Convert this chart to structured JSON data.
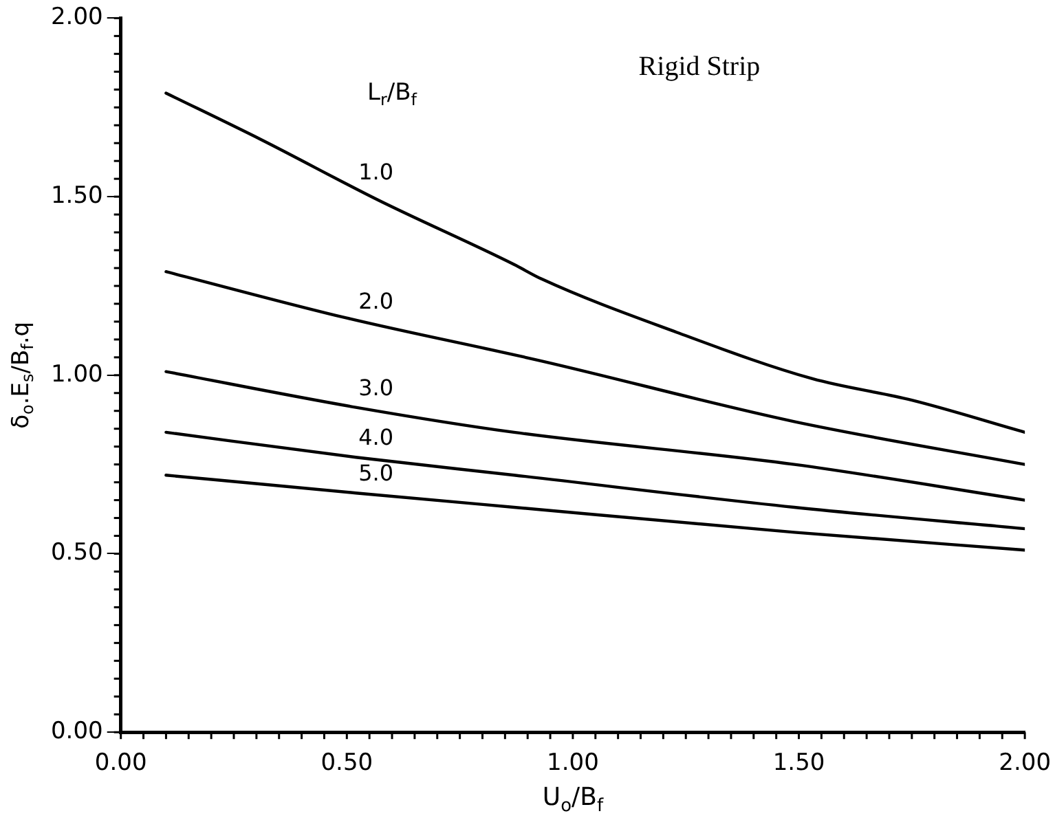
{
  "chart_data": {
    "type": "line",
    "annotations": [
      "Rigid Strip"
    ],
    "legend_title": "L$_{r}$/B$_{f}$",
    "xlabel": "U$_{o}$/B$_{f}$",
    "ylabel": "δ$_{o}$.E$_{s}$/B$_{f}$.q",
    "series": [
      {
        "name": "1.0",
        "color": "#000000",
        "x": [
          0.1,
          0.31,
          0.57,
          0.87,
          0.93,
          1.23,
          1.53,
          1.75,
          2.0
        ],
        "values": [
          1.79,
          1.66,
          1.49,
          1.31,
          1.27,
          1.12,
          0.99,
          0.93,
          0.84
        ]
      },
      {
        "name": "2.0",
        "color": "#000000",
        "x": [
          0.1,
          0.5,
          0.93,
          1.49,
          2.0
        ],
        "values": [
          1.29,
          1.16,
          1.04,
          0.87,
          0.75
        ]
      },
      {
        "name": "3.0",
        "color": "#000000",
        "x": [
          0.1,
          0.52,
          0.87,
          1.49,
          2.0
        ],
        "values": [
          1.01,
          0.91,
          0.84,
          0.75,
          0.65
        ]
      },
      {
        "name": "4.0",
        "color": "#000000",
        "x": [
          0.1,
          0.52,
          0.87,
          1.49,
          2.0
        ],
        "values": [
          0.84,
          0.77,
          0.72,
          0.63,
          0.57
        ]
      },
      {
        "name": "5.0",
        "color": "#000000",
        "x": [
          0.1,
          0.52,
          0.87,
          1.49,
          2.0
        ],
        "values": [
          0.72,
          0.67,
          0.63,
          0.56,
          0.51
        ]
      }
    ],
    "xlim": [
      0,
      2
    ],
    "ylim": [
      0,
      2
    ],
    "xticks": [
      {
        "value": 0,
        "label": "0.00"
      },
      {
        "value": 0.5,
        "label": "0.50"
      },
      {
        "value": 1,
        "label": "1.00"
      },
      {
        "value": 1.5,
        "label": "1.50"
      },
      {
        "value": 2,
        "label": "2.00"
      }
    ],
    "yticks": [
      {
        "value": 0,
        "label": "0.00"
      },
      {
        "value": 0.5,
        "label": "0.50"
      },
      {
        "value": 1,
        "label": "1.00"
      },
      {
        "value": 1.5,
        "label": "1.50"
      },
      {
        "value": 2,
        "label": "2.00"
      }
    ],
    "grid": false,
    "legend": false,
    "marker": "none",
    "line_style": "solid"
  }
}
